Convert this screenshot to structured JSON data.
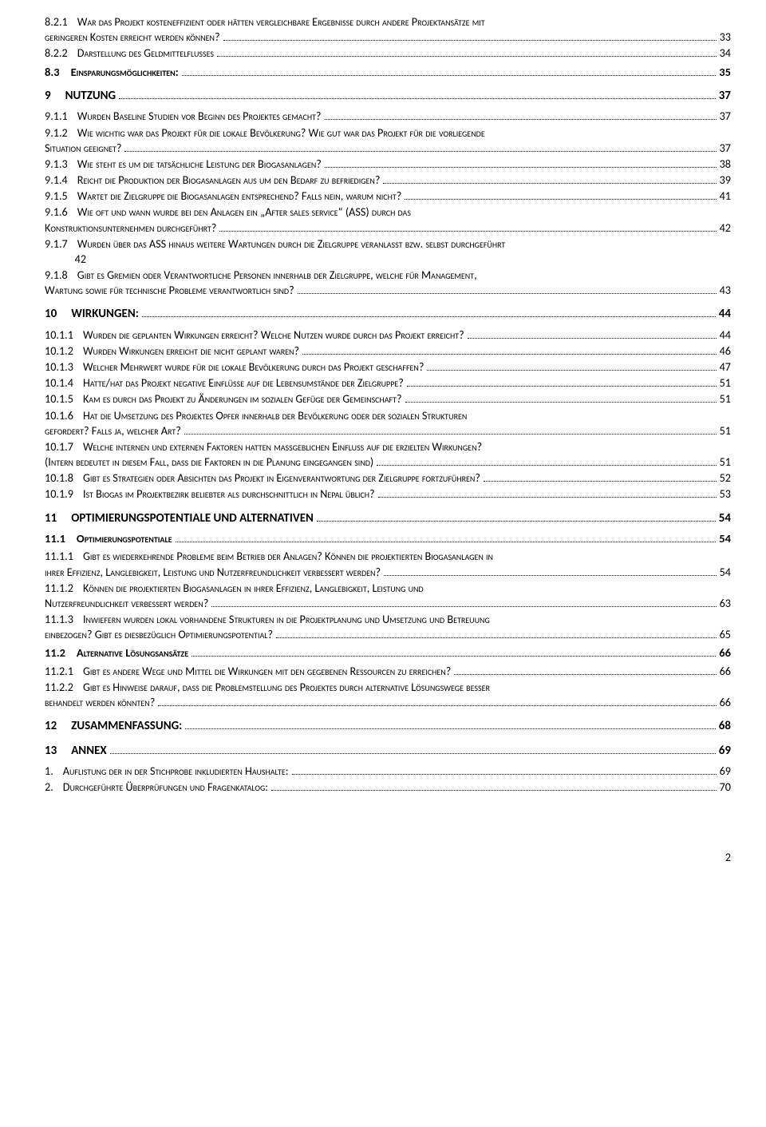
{
  "footer_page": "2",
  "entries": [
    {
      "lvl": 3,
      "num": "8.2.1",
      "txt": "War das Projekt kosteneffizient oder hätten vergleichbare Ergebnisse durch andere Projektansätze mit",
      "wrap": "geringeren Kosten erreicht werden können?",
      "pg": "33"
    },
    {
      "lvl": 3,
      "num": "8.2.2",
      "txt": "Darstellung des Geldmittelflusses",
      "pg": "34"
    },
    {
      "lvl": 2,
      "num": "8.3",
      "txt": "Einsparungsmöglichkeiten:",
      "pg": "35"
    },
    {
      "lvl": 1,
      "num": "9",
      "txt": "NUTZUNG",
      "pg": "37"
    },
    {
      "lvl": 3,
      "num": "9.1.1",
      "txt": "Wurden Baseline Studien vor Beginn des Projektes gemacht?",
      "pg": "37"
    },
    {
      "lvl": 3,
      "num": "9.1.2",
      "txt": "Wie wichtig war das Projekt für die lokale Bevölkerung? Wie gut war das Projekt für die vorliegende",
      "wrap": "Situation geeignet?",
      "pg": "37"
    },
    {
      "lvl": 3,
      "num": "9.1.3",
      "txt": "Wie steht es um die tatsächliche Leistung der Biogasanlagen?",
      "pg": "38"
    },
    {
      "lvl": 3,
      "num": "9.1.4",
      "txt": "Reicht die Produktion der Biogasanlagen aus um den Bedarf zu befriedigen?",
      "pg": "39"
    },
    {
      "lvl": 3,
      "num": "9.1.5",
      "txt": "Wartet die Zielgruppe die Biogasanlagen entsprechend? Falls nein, warum nicht?",
      "pg": "41"
    },
    {
      "lvl": 3,
      "num": "9.1.6",
      "txt": "Wie oft und wann wurde bei den Anlagen ein „After sales service“ (ASS) durch das",
      "wrap": "Konstruktionsunternehmen durchgeführt?",
      "pg": "42"
    },
    {
      "lvl": 3,
      "num": "9.1.7",
      "txt": "Wurden über das ASS hinaus weitere Wartungen durch die Zielgruppe veranlasst bzw. selbst durchgeführt",
      "wrapnolead": "42",
      "pg": ""
    },
    {
      "lvl": 3,
      "num": "9.1.8",
      "txt": "Gibt es Gremien oder Verantwortliche Personen innerhalb der Zielgruppe, welche für Management,",
      "wrap": "Wartung sowie für technische Probleme verantwortlich sind?",
      "pg": "43"
    },
    {
      "lvl": 1,
      "num": "10",
      "txt": "WIRKUNGEN:",
      "pg": "44"
    },
    {
      "lvl": 3,
      "num": "10.1.1",
      "txt": "Wurden die geplanten Wirkungen erreicht? Welche Nutzen wurde durch das Projekt erreicht?",
      "pg": "44"
    },
    {
      "lvl": 3,
      "num": "10.1.2",
      "txt": "Wurden Wirkungen erreicht die nicht geplant waren?",
      "pg": "46"
    },
    {
      "lvl": 3,
      "num": "10.1.3",
      "txt": "Welcher Mehrwert wurde für die lokale Bevölkerung durch das Projekt geschaffen?",
      "pg": "47"
    },
    {
      "lvl": 3,
      "num": "10.1.4",
      "txt": "Hatte/hat das Projekt negative Einflüsse auf die Lebensumstände der Zielgruppe?",
      "pg": "51"
    },
    {
      "lvl": 3,
      "num": "10.1.5",
      "txt": "Kam es durch das Projekt zu Änderungen im sozialen Gefüge der Gemeinschaft?",
      "pg": "51"
    },
    {
      "lvl": 3,
      "num": "10.1.6",
      "txt": "Hat die Umsetzung des Projektes Opfer innerhalb der Bevölkerung oder der sozialen Strukturen",
      "wrap": "gefordert? Falls ja, welcher Art?",
      "pg": "51"
    },
    {
      "lvl": 3,
      "num": "10.1.7",
      "txt": "Welche internen und externen Faktoren hatten maßgeblichen Einfluss auf die erzielten Wirkungen?",
      "wrapfull": "(Intern bedeutet in diesem Fall, dass die Faktoren in die Planung eingegangen sind)",
      "pg": "51"
    },
    {
      "lvl": 3,
      "num": "10.1.8",
      "txt": "Gibt es Strategien oder Absichten das Projekt in Eigenverantwortung der Zielgruppe fortzuführen?",
      "pg": "52"
    },
    {
      "lvl": 3,
      "num": "10.1.9",
      "txt": "Ist Biogas im Projektbezirk beliebter als durchschnittlich in Nepal üblich?",
      "pg": "53"
    },
    {
      "lvl": 1,
      "num": "11",
      "txt": "OPTIMIERUNGSPOTENTIALE UND ALTERNATIVEN",
      "pg": "54"
    },
    {
      "lvl": 2,
      "num": "11.1",
      "txt": "Optimierungspotentiale",
      "pg": "54"
    },
    {
      "lvl": 3,
      "num": "11.1.1",
      "txt": "Gibt es wiederkehrende Probleme beim Betrieb der Anlagen? Können die projektierten Biogasanlagen in",
      "wrap": "ihrer Effizienz, Langlebigkeit, Leistung und Nutzerfreundlichkeit verbessert werden?",
      "pg": "54"
    },
    {
      "lvl": 3,
      "num": "11.1.2",
      "txt": "Können die projektierten Biogasanlagen in ihrer Effizienz, Langlebigkeit, Leistung und",
      "wrap": "Nutzerfreundlichkeit verbessert werden?",
      "pg": "63"
    },
    {
      "lvl": 3,
      "num": "11.1.3",
      "txt": "Inwiefern wurden lokal vorhandene Strukturen in die Projektplanung und Umsetzung und Betreuung",
      "wrap": "einbezogen? Gibt es diesbezüglich Optimierungspotential?",
      "pg": "65"
    },
    {
      "lvl": 2,
      "num": "11.2",
      "txt": "Alternative Lösungsansätze",
      "pg": "66"
    },
    {
      "lvl": 3,
      "num": "11.2.1",
      "txt": "Gibt es andere Wege und Mittel die Wirkungen mit den gegebenen Ressourcen zu erreichen?",
      "pg": "66"
    },
    {
      "lvl": 3,
      "num": "11.2.2",
      "txt": "Gibt es Hinweise darauf, dass die Problemstellung des Projektes durch alternative Lösungswege besser",
      "wrap": "behandelt werden könnten?",
      "pg": "66"
    },
    {
      "lvl": 1,
      "num": "12",
      "txt": "ZUSAMMENFASSUNG:",
      "pg": "68"
    },
    {
      "lvl": 1,
      "num": "13",
      "txt": "ANNEX",
      "pg": "69"
    },
    {
      "lvl": 3,
      "num": "1.",
      "txt": "Auflistung der in der Stichprobe inkludierten Haushalte:",
      "pg": "69",
      "cls": "gap-s"
    },
    {
      "lvl": 3,
      "num": "2.",
      "txt": "Durchgeführte Überprüfungen und Fragenkatalog:",
      "pg": "70"
    }
  ]
}
